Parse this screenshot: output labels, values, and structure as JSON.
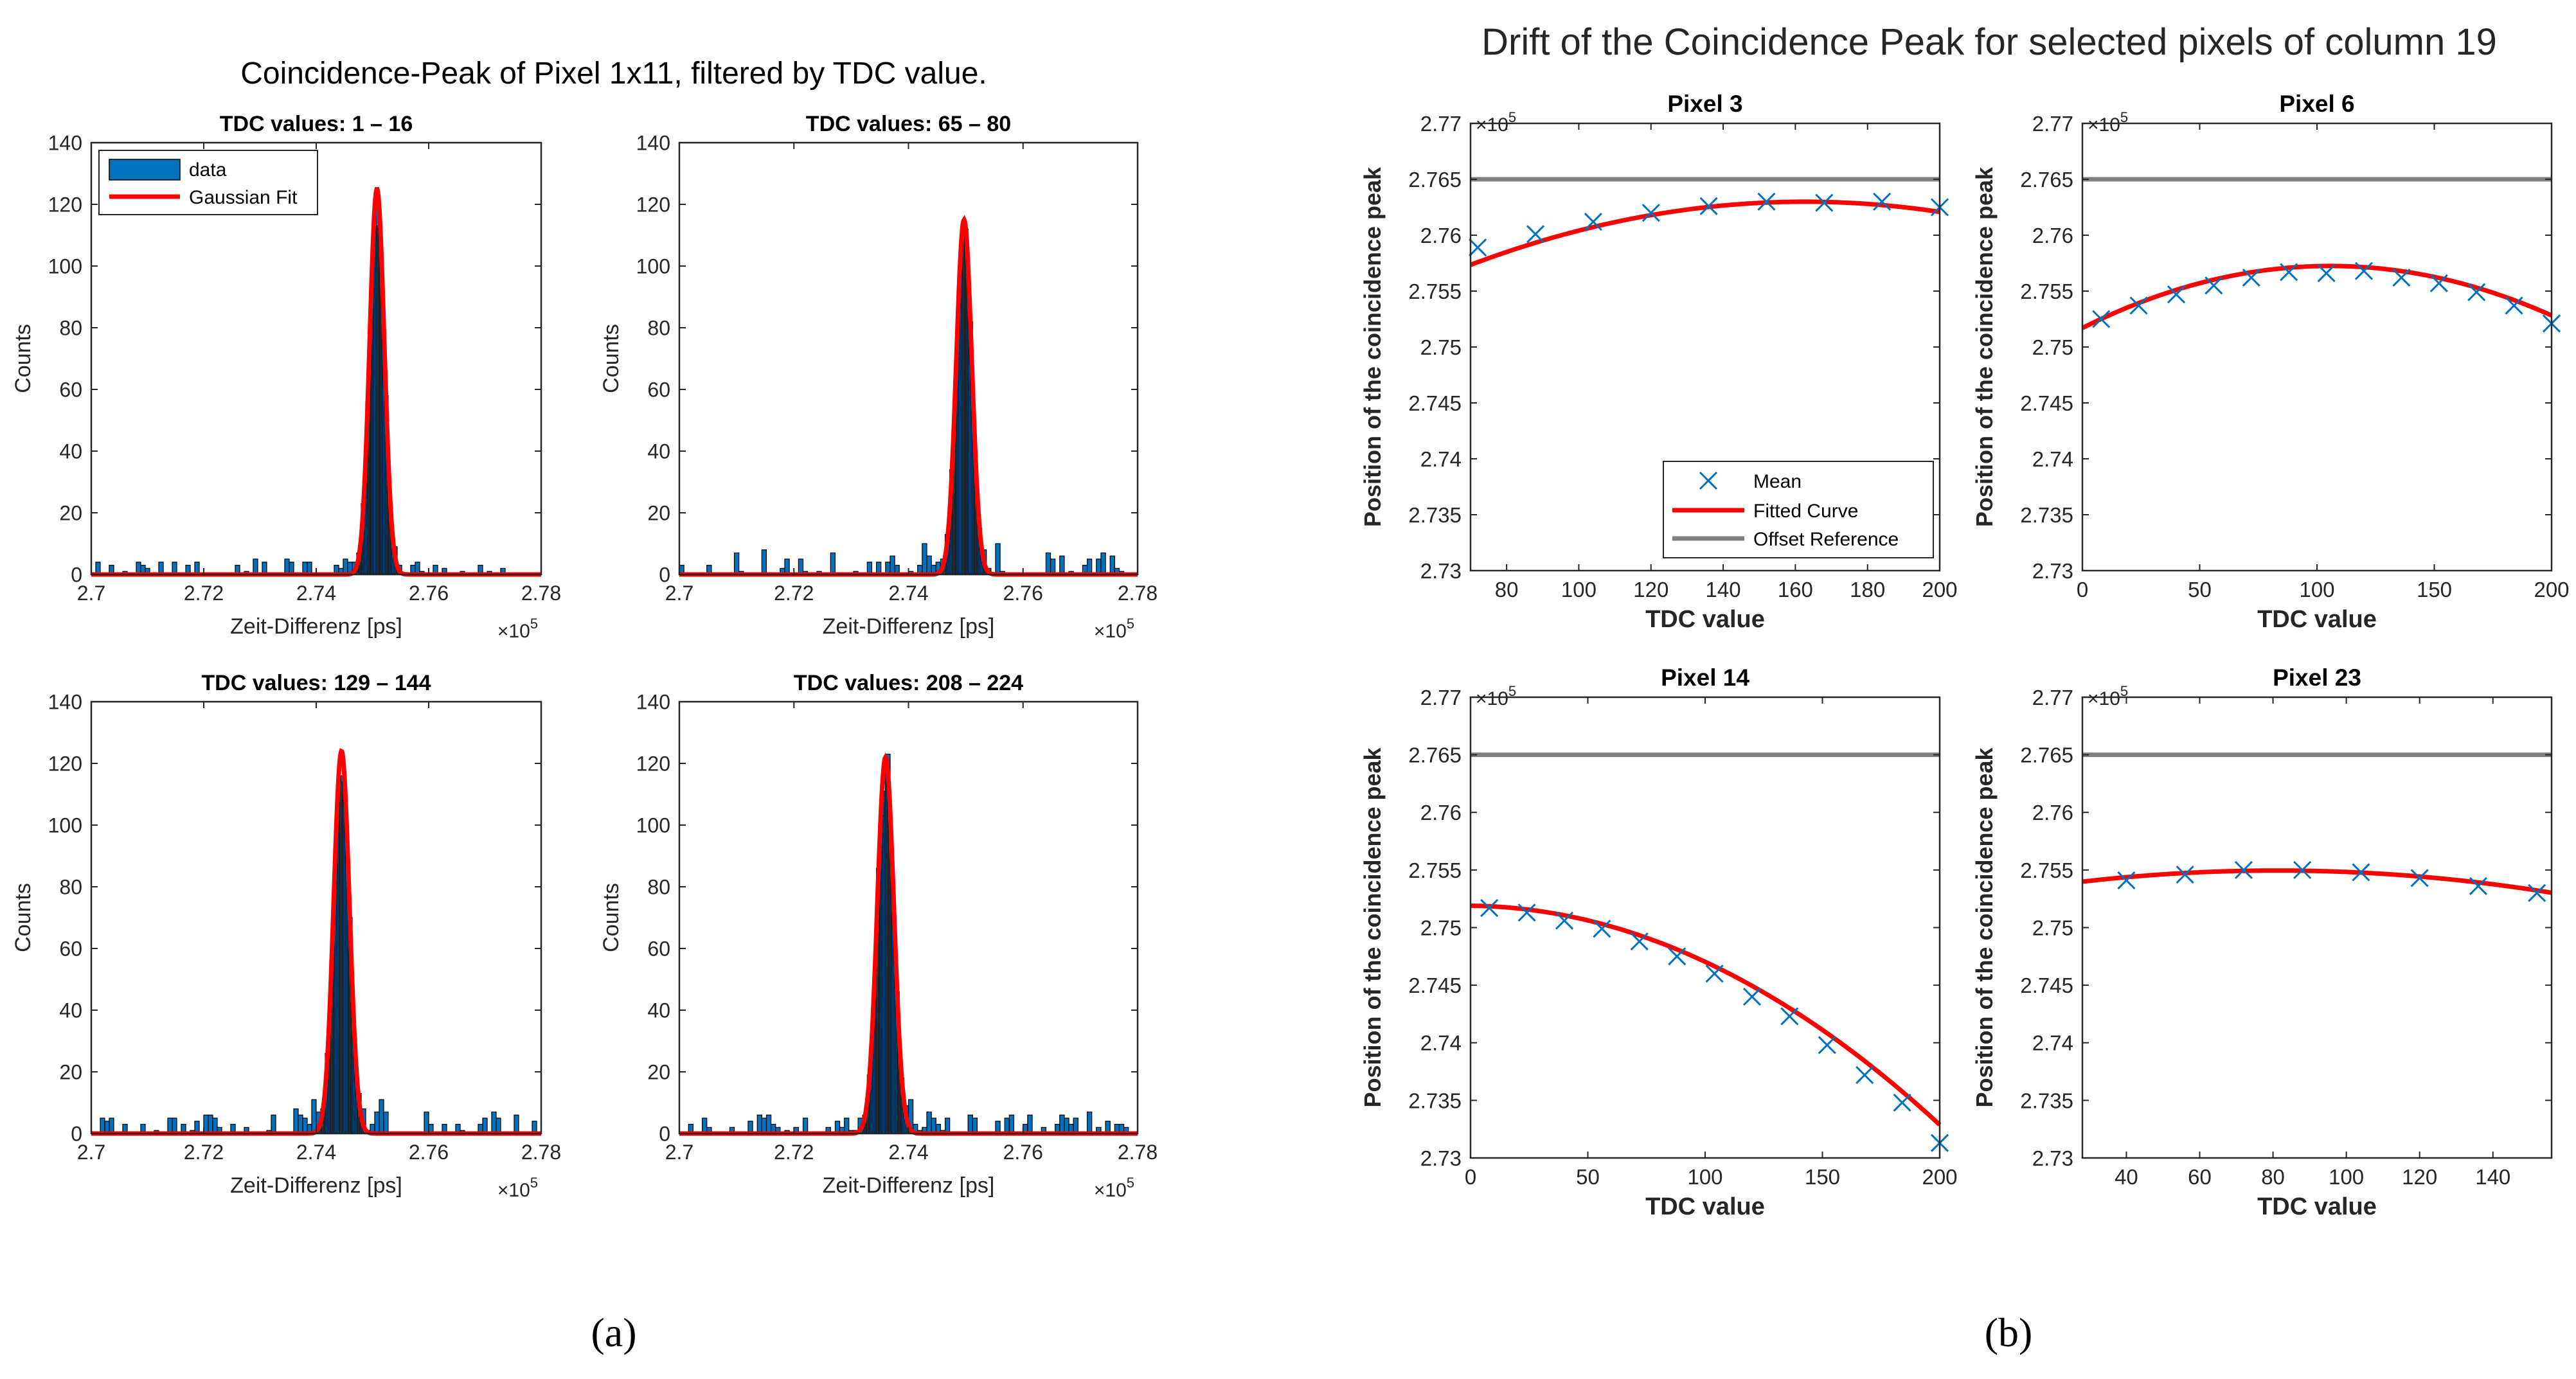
{
  "figure_a": {
    "title": "Coincidence-Peak of Pixel 1x11, filtered by TDC value.",
    "caption": "(a)"
  },
  "figure_b": {
    "title": "Drift of the Coincidence Peak for selected pixels of column 19",
    "caption": "(b)"
  },
  "colors": {
    "bar_fill": "#0072BD",
    "fit": "#FF0000",
    "marker": "#0072BD",
    "reference": "#808080",
    "axis": "#262626"
  },
  "chart_data": [
    {
      "type": "bar",
      "id": "a1",
      "title": "TDC values: 1 – 16",
      "xlabel": "Zeit-Differenz [ps]",
      "ylabel": "Counts",
      "xlim": [
        270000,
        278000
      ],
      "ylim": [
        0,
        140
      ],
      "xticks": [
        2.7,
        2.72,
        2.74,
        2.76,
        2.78
      ],
      "xtick_labels": [
        "2.7",
        "2.72",
        "2.74",
        "2.76",
        "2.78"
      ],
      "yticks": [
        0,
        20,
        40,
        60,
        80,
        100,
        120,
        140
      ],
      "exponent_label": "×10",
      "exponent_power": "5",
      "legend": {
        "entries": [
          "data",
          "Gaussian Fit"
        ],
        "position": "top-left"
      },
      "gaussian_fit": {
        "mu": 275080,
        "sigma": 130,
        "amplitude": 125
      },
      "noise_seed": 11,
      "noise_max": 7,
      "bins": 100
    },
    {
      "type": "bar",
      "id": "a2",
      "title": "TDC values: 65 – 80",
      "xlabel": "Zeit-Differenz [ps]",
      "ylabel": "Counts",
      "xlim": [
        270000,
        278000
      ],
      "ylim": [
        0,
        140
      ],
      "xticks": [
        2.7,
        2.72,
        2.74,
        2.76,
        2.78
      ],
      "xtick_labels": [
        "2.7",
        "2.72",
        "2.74",
        "2.76",
        "2.78"
      ],
      "yticks": [
        0,
        20,
        40,
        60,
        80,
        100,
        120,
        140
      ],
      "exponent_label": "×10",
      "exponent_power": "5",
      "gaussian_fit": {
        "mu": 274970,
        "sigma": 135,
        "amplitude": 115
      },
      "noise_seed": 23,
      "noise_max": 11,
      "bins": 100
    },
    {
      "type": "bar",
      "id": "a3",
      "title": "TDC values: 129 – 144",
      "xlabel": "Zeit-Differenz [ps]",
      "ylabel": "Counts",
      "xlim": [
        270000,
        278000
      ],
      "ylim": [
        0,
        140
      ],
      "xticks": [
        2.7,
        2.72,
        2.74,
        2.76,
        2.78
      ],
      "xtick_labels": [
        "2.7",
        "2.72",
        "2.74",
        "2.76",
        "2.78"
      ],
      "yticks": [
        0,
        20,
        40,
        60,
        80,
        100,
        120,
        140
      ],
      "exponent_label": "×10",
      "exponent_power": "5",
      "gaussian_fit": {
        "mu": 274450,
        "sigma": 140,
        "amplitude": 124
      },
      "noise_seed": 37,
      "noise_max": 10,
      "bins": 100
    },
    {
      "type": "bar",
      "id": "a4",
      "title": "TDC values: 208 – 224",
      "xlabel": "Zeit-Differenz [ps]",
      "ylabel": "Counts",
      "xlim": [
        270000,
        278000
      ],
      "ylim": [
        0,
        140
      ],
      "xticks": [
        2.7,
        2.72,
        2.74,
        2.76,
        2.78
      ],
      "xtick_labels": [
        "2.7",
        "2.72",
        "2.74",
        "2.76",
        "2.78"
      ],
      "yticks": [
        0,
        20,
        40,
        60,
        80,
        100,
        120,
        140
      ],
      "exponent_label": "×10",
      "exponent_power": "5",
      "gaussian_fit": {
        "mu": 273600,
        "sigma": 145,
        "amplitude": 122
      },
      "noise_seed": 51,
      "noise_max": 10,
      "bins": 100
    },
    {
      "type": "scatter",
      "id": "b1",
      "title": "Pixel 3",
      "xlabel": "TDC value",
      "ylabel": "Position of the coincidence peak",
      "xlim": [
        70,
        200
      ],
      "ylim": [
        273000,
        277000
      ],
      "xticks": [
        80,
        100,
        120,
        140,
        160,
        180,
        200
      ],
      "yticks": [
        2.73,
        2.735,
        2.74,
        2.745,
        2.75,
        2.755,
        2.76,
        2.765,
        2.77
      ],
      "ytick_labels": [
        "2.73",
        "2.735",
        "2.74",
        "2.745",
        "2.75",
        "2.755",
        "2.76",
        "2.765",
        "2.77"
      ],
      "exponent_label": "×10",
      "exponent_power": "5",
      "reference": 276500,
      "x": [
        72,
        88,
        104,
        120,
        136,
        152,
        168,
        184,
        200
      ],
      "y": [
        275890,
        276010,
        276120,
        276200,
        276260,
        276300,
        276290,
        276300,
        276250
      ],
      "fit": {
        "a": -0.0657,
        "b": 21.38,
        "c": 274560
      },
      "legend": {
        "entries": [
          "Mean",
          "Fitted Curve",
          "Offset Reference"
        ],
        "position": "bottom-right"
      }
    },
    {
      "type": "scatter",
      "id": "b2",
      "title": "Pixel 6",
      "xlabel": "TDC value",
      "ylabel": "Position of the coincidence peak",
      "xlim": [
        0,
        200
      ],
      "ylim": [
        273000,
        277000
      ],
      "xticks": [
        0,
        50,
        100,
        150,
        200
      ],
      "yticks": [
        2.73,
        2.735,
        2.74,
        2.745,
        2.75,
        2.755,
        2.76,
        2.765,
        2.77
      ],
      "ytick_labels": [
        "2.73",
        "2.735",
        "2.74",
        "2.745",
        "2.75",
        "2.755",
        "2.76",
        "2.765",
        "2.77"
      ],
      "exponent_label": "×10",
      "exponent_power": "5",
      "reference": 276500,
      "x": [
        8,
        24,
        40,
        56,
        72,
        88,
        104,
        120,
        136,
        152,
        168,
        184,
        200
      ],
      "y": [
        275250,
        275370,
        275470,
        275550,
        275620,
        275670,
        275660,
        275680,
        275620,
        275570,
        275490,
        275370,
        275210
      ],
      "fit": {
        "a": -0.0497,
        "b": 10.5,
        "c": 275170
      }
    },
    {
      "type": "scatter",
      "id": "b3",
      "title": "Pixel 14",
      "xlabel": "TDC value",
      "ylabel": "Position of the coincidence peak",
      "xlim": [
        0,
        200
      ],
      "ylim": [
        273000,
        277000
      ],
      "xticks": [
        0,
        50,
        100,
        150,
        200
      ],
      "yticks": [
        2.73,
        2.735,
        2.74,
        2.745,
        2.75,
        2.755,
        2.76,
        2.765,
        2.77
      ],
      "ytick_labels": [
        "2.73",
        "2.735",
        "2.74",
        "2.745",
        "2.75",
        "2.755",
        "2.76",
        "2.765",
        "2.77"
      ],
      "exponent_label": "×10",
      "exponent_power": "5",
      "reference": 276500,
      "x": [
        8,
        24,
        40,
        56,
        72,
        88,
        104,
        120,
        136,
        152,
        168,
        184,
        200
      ],
      "y": [
        275170,
        275130,
        275060,
        274990,
        274880,
        274750,
        274600,
        274400,
        274230,
        273980,
        273720,
        273480,
        273130
      ],
      "fit": {
        "a": -0.0464,
        "b": -0.23,
        "c": 275190
      }
    },
    {
      "type": "scatter",
      "id": "b4",
      "title": "Pixel 23",
      "xlabel": "TDC value",
      "ylabel": "Position of the coincidence peak",
      "xlim": [
        28,
        156
      ],
      "ylim": [
        273000,
        277000
      ],
      "xticks": [
        40,
        60,
        80,
        100,
        120,
        140
      ],
      "yticks": [
        2.73,
        2.735,
        2.74,
        2.745,
        2.75,
        2.755,
        2.76,
        2.765,
        2.77
      ],
      "ytick_labels": [
        "2.73",
        "2.735",
        "2.74",
        "2.745",
        "2.75",
        "2.755",
        "2.76",
        "2.765",
        "2.77"
      ],
      "exponent_label": "×10",
      "exponent_power": "5",
      "reference": 276500,
      "x": [
        40,
        56,
        72,
        88,
        104,
        120,
        136,
        152
      ],
      "y": [
        275410,
        275460,
        275500,
        275500,
        275480,
        275430,
        275360,
        275300
      ],
      "fit": {
        "a": -0.0343,
        "b": 5.56,
        "c": 275270
      }
    }
  ]
}
